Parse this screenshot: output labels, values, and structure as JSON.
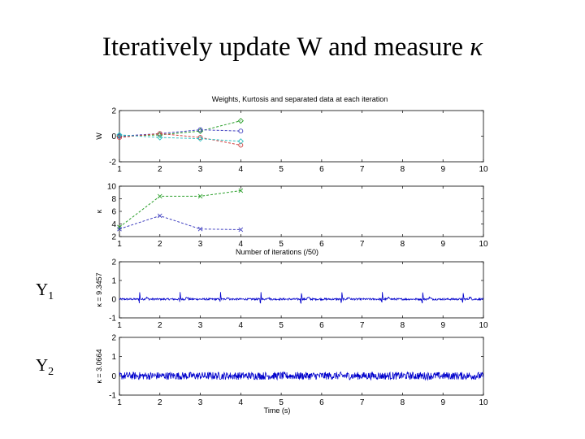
{
  "slide": {
    "title": "Iteratively update W and measure",
    "title_symbol": "κ",
    "labels": [
      {
        "base": "Y",
        "sub": "1"
      },
      {
        "base": "Y",
        "sub": "2"
      }
    ]
  },
  "chart_data": [
    {
      "type": "line",
      "title": "Weights, Kurtosis and separated data at each iteration",
      "ylabel": "W",
      "xlim": [
        1,
        10
      ],
      "ylim": [
        -2,
        2
      ],
      "xticks": [
        1,
        2,
        3,
        4,
        5,
        6,
        7,
        8,
        9,
        10
      ],
      "yticks": [
        -2,
        0,
        2
      ],
      "x": [
        1,
        2,
        3,
        4
      ],
      "series": [
        {
          "values": [
            0,
            0.1,
            0.4,
            1.2
          ],
          "color": "#2ca02c",
          "marker": "diamond"
        },
        {
          "values": [
            0,
            0.2,
            0.5,
            0.4
          ],
          "color": "#4040c0",
          "marker": "circle"
        },
        {
          "values": [
            -0.1,
            0.2,
            -0.1,
            -0.7
          ],
          "color": "#d04040",
          "marker": "circle"
        },
        {
          "values": [
            0.1,
            -0.1,
            -0.2,
            -0.4
          ],
          "color": "#30c0c0",
          "marker": "diamond"
        }
      ]
    },
    {
      "type": "line",
      "ylabel": "κ",
      "xlabel": "Number of iterations (/50)",
      "xlim": [
        1,
        10
      ],
      "ylim": [
        2,
        10
      ],
      "xticks": [
        1,
        2,
        3,
        4,
        5,
        6,
        7,
        8,
        9,
        10
      ],
      "yticks": [
        2,
        4,
        6,
        8,
        10
      ],
      "x": [
        1,
        2,
        3,
        4
      ],
      "series": [
        {
          "values": [
            3.5,
            8.4,
            8.4,
            9.3
          ],
          "color": "#2ca02c",
          "marker": "x"
        },
        {
          "values": [
            3.2,
            5.3,
            3.2,
            3.1
          ],
          "color": "#4040c0",
          "marker": "x"
        }
      ]
    },
    {
      "type": "line",
      "ylabel": "κ = 9.3457",
      "xlim": [
        1,
        10
      ],
      "ylim": [
        -1,
        2
      ],
      "xticks": [
        1,
        2,
        3,
        4,
        5,
        6,
        7,
        8,
        9,
        10
      ],
      "yticks": [
        -1,
        0,
        1,
        2
      ],
      "description_values": {
        "baseline": 0,
        "spike_height": 0.35,
        "noise_amplitude": 0.05
      },
      "series": [
        {
          "name": "",
          "color": "#0000cc"
        }
      ]
    },
    {
      "type": "line",
      "ylabel": "κ = 3.0664",
      "xlabel": "Time (s)",
      "xlim": [
        1,
        10
      ],
      "ylim": [
        -1,
        2
      ],
      "xticks": [
        1,
        2,
        3,
        4,
        5,
        6,
        7,
        8,
        9,
        10
      ],
      "yticks": [
        -1,
        0,
        1,
        2
      ],
      "description_values": {
        "baseline": 0,
        "noise_amplitude": 0.2
      },
      "series": [
        {
          "name": "",
          "color": "#0000cc"
        }
      ]
    }
  ]
}
